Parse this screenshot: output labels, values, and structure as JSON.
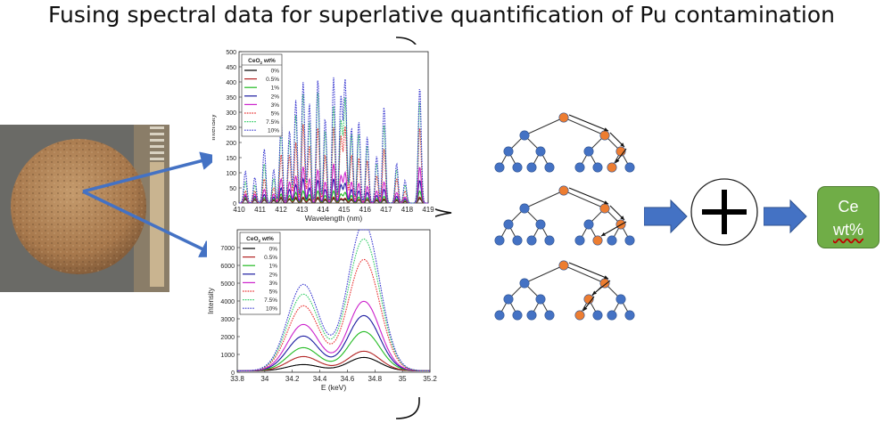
{
  "title": "Fusing spectral data for superlative quantification of Pu contamination",
  "output_box": {
    "line1": "Ce",
    "line2": "wt%"
  },
  "colors": {
    "box_green": "#70ad47",
    "arrow_blue": "#4472c4",
    "node_blue": "#4472c4",
    "node_orange": "#ed7d31"
  },
  "icons": {
    "sample": "pellet-photo-icon",
    "combine": "plus-circle-icon"
  },
  "legend": {
    "title_main": "CeO",
    "title_sub": "2",
    "title_tail": " wt%",
    "labels": [
      "0%",
      "0.5%",
      "1%",
      "2%",
      "3%",
      "5%",
      "7.5%",
      "10%"
    ]
  },
  "series_colors": [
    "#000000",
    "#b22222",
    "#22bb22",
    "#1a1aa0",
    "#cc22cc",
    "#e83030",
    "#33cc66",
    "#3a3ad0"
  ],
  "chart_data": [
    {
      "type": "line",
      "xlabel": "Wavelength (nm)",
      "ylabel": "Intensity",
      "xlim": [
        410,
        419
      ],
      "ylim": [
        0,
        500
      ],
      "xticks": [
        410,
        411,
        412,
        413,
        414,
        415,
        416,
        417,
        418,
        419
      ],
      "yticks": [
        0,
        50,
        100,
        150,
        200,
        250,
        300,
        350,
        400,
        450,
        500
      ],
      "grid": false,
      "legend_position": "top-left",
      "peaks": [
        {
          "x": 410.3,
          "h": [
            12,
            15,
            18,
            24,
            30,
            40,
            70,
            105
          ]
        },
        {
          "x": 410.75,
          "h": [
            10,
            12,
            16,
            22,
            30,
            40,
            60,
            85
          ]
        },
        {
          "x": 411.2,
          "h": [
            10,
            12,
            18,
            28,
            45,
            80,
            130,
            180
          ]
        },
        {
          "x": 411.65,
          "h": [
            8,
            10,
            14,
            20,
            30,
            50,
            80,
            110
          ]
        },
        {
          "x": 412.0,
          "h": [
            15,
            20,
            30,
            50,
            80,
            160,
            240,
            275
          ]
        },
        {
          "x": 412.4,
          "h": [
            12,
            15,
            25,
            45,
            70,
            160,
            210,
            240
          ]
        },
        {
          "x": 412.7,
          "h": [
            15,
            20,
            35,
            60,
            90,
            200,
            290,
            340
          ]
        },
        {
          "x": 413.05,
          "h": [
            15,
            20,
            40,
            80,
            120,
            260,
            360,
            400
          ]
        },
        {
          "x": 413.35,
          "h": [
            12,
            15,
            28,
            50,
            80,
            190,
            270,
            330
          ]
        },
        {
          "x": 413.75,
          "h": [
            15,
            20,
            40,
            75,
            110,
            250,
            370,
            410
          ]
        },
        {
          "x": 414.1,
          "h": [
            10,
            14,
            25,
            45,
            70,
            160,
            240,
            280
          ]
        },
        {
          "x": 414.5,
          "h": [
            15,
            20,
            40,
            80,
            130,
            250,
            320,
            415
          ]
        },
        {
          "x": 414.85,
          "h": [
            12,
            15,
            30,
            60,
            90,
            220,
            270,
            350
          ]
        },
        {
          "x": 415.05,
          "h": [
            12,
            16,
            35,
            65,
            100,
            250,
            345,
            405
          ]
        },
        {
          "x": 415.35,
          "h": [
            10,
            14,
            25,
            45,
            70,
            160,
            230,
            250
          ]
        },
        {
          "x": 415.7,
          "h": [
            10,
            12,
            20,
            40,
            65,
            150,
            230,
            270
          ]
        },
        {
          "x": 416.1,
          "h": [
            10,
            12,
            18,
            35,
            55,
            140,
            190,
            220
          ]
        },
        {
          "x": 416.55,
          "h": [
            8,
            10,
            15,
            25,
            40,
            90,
            130,
            155
          ]
        },
        {
          "x": 416.9,
          "h": [
            10,
            14,
            22,
            45,
            70,
            180,
            260,
            320
          ]
        },
        {
          "x": 417.5,
          "h": [
            8,
            10,
            14,
            22,
            35,
            80,
            110,
            130
          ]
        },
        {
          "x": 417.9,
          "h": [
            5,
            6,
            9,
            14,
            20,
            40,
            60,
            75
          ]
        },
        {
          "x": 418.6,
          "h": [
            15,
            20,
            40,
            75,
            120,
            250,
            340,
            385
          ]
        }
      ]
    },
    {
      "type": "line",
      "xlabel": "E (keV)",
      "ylabel": "Intensity",
      "xlim": [
        33.8,
        35.2
      ],
      "ylim": [
        0,
        8000
      ],
      "xticks": [
        33.8,
        34,
        34.2,
        34.4,
        34.6,
        34.8,
        35,
        35.2
      ],
      "yticks": [
        0,
        1000,
        2000,
        3000,
        4000,
        5000,
        6000,
        7000
      ],
      "grid": false,
      "legend_position": "top-left",
      "peaks": [
        {
          "x": 34.28,
          "h": [
            350,
            800,
            1300,
            1950,
            2600,
            3650,
            4300,
            4850
          ]
        },
        {
          "x": 34.72,
          "h": [
            750,
            1100,
            2200,
            3100,
            3900,
            6250,
            7400,
            8300
          ]
        }
      ],
      "baseline": 80
    }
  ]
}
